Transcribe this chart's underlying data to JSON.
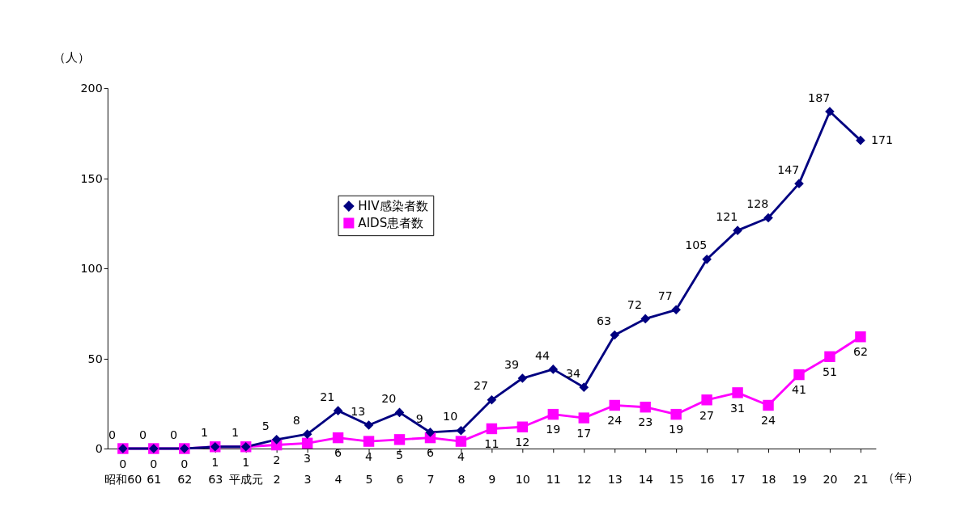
{
  "chart_data": {
    "type": "line",
    "ylabel": "（人）",
    "xlabel": "（年）",
    "categories": [
      "昭和60",
      "61",
      "62",
      "63",
      "平成元",
      "2",
      "3",
      "4",
      "5",
      "6",
      "7",
      "8",
      "9",
      "10",
      "11",
      "12",
      "13",
      "14",
      "15",
      "16",
      "17",
      "18",
      "19",
      "20",
      "21"
    ],
    "series": [
      {
        "name": "HIV感染者数",
        "color": "#000080",
        "marker": "diamond",
        "values": [
          0,
          0,
          0,
          1,
          1,
          5,
          8,
          21,
          13,
          20,
          9,
          10,
          27,
          39,
          44,
          34,
          63,
          72,
          77,
          105,
          121,
          128,
          147,
          187,
          171
        ]
      },
      {
        "name": "AIDS患者数",
        "color": "#ff00ff",
        "marker": "square",
        "values": [
          0,
          0,
          0,
          1,
          1,
          2,
          3,
          6,
          4,
          5,
          6,
          4,
          11,
          12,
          19,
          17,
          24,
          23,
          19,
          27,
          31,
          24,
          41,
          51,
          62
        ]
      }
    ],
    "ylim": [
      0,
      200
    ],
    "yticks": [
      0,
      50,
      100,
      150,
      200
    ],
    "grid": false,
    "legend": "top left",
    "data_labels": true,
    "line_style": "solid"
  }
}
